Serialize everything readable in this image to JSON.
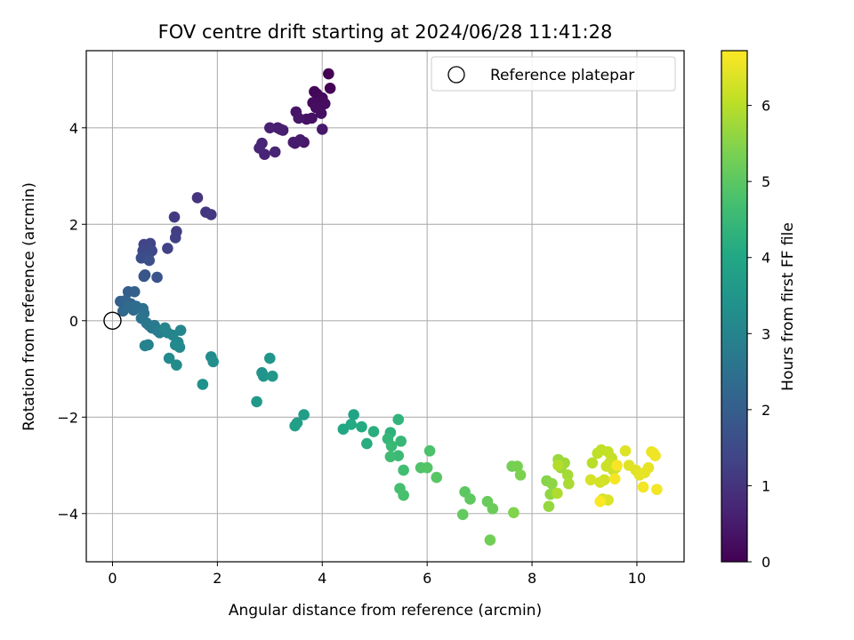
{
  "chart_data": {
    "type": "scatter",
    "title": "FOV centre drift starting at 2024/06/28 11:41:28",
    "xlabel": "Angular distance from reference (arcmin)",
    "ylabel": "Rotation from reference (arcmin)",
    "xlim": [
      -0.5,
      10.9
    ],
    "ylim": [
      -5.0,
      5.6
    ],
    "xticks": [
      0,
      2,
      4,
      6,
      8,
      10
    ],
    "yticks": [
      -4,
      -2,
      0,
      2,
      4
    ],
    "grid": true,
    "legend": {
      "placement": "top-right",
      "entries": [
        "Reference platepar"
      ]
    },
    "colorbar": {
      "label": "Hours from first FF file",
      "range": [
        0,
        6.72
      ],
      "ticks": [
        0,
        1,
        2,
        3,
        4,
        5,
        6
      ],
      "colormap": "viridis"
    },
    "reference_point": {
      "x": 0,
      "y": 0,
      "label": "Reference platepar"
    },
    "series": [
      {
        "x": [
          4.12,
          4.15,
          3.85,
          3.9,
          4.0,
          3.95,
          3.82,
          4.05,
          3.88,
          3.98,
          3.8,
          3.7,
          3.5,
          3.55,
          3.65,
          3.48,
          4.0,
          3.58,
          3.45,
          3.25,
          3.15,
          3.2,
          3.0,
          2.9,
          2.85,
          2.8,
          3.1
        ],
        "y": [
          5.12,
          4.82,
          4.75,
          4.7,
          4.62,
          4.55,
          4.52,
          4.5,
          4.42,
          4.3,
          4.2,
          4.18,
          4.33,
          4.2,
          3.7,
          3.68,
          3.97,
          3.75,
          3.7,
          3.95,
          4.0,
          3.97,
          4.0,
          3.45,
          3.68,
          3.58,
          3.5
        ],
        "hours": [
          0.0,
          0.05,
          0.1,
          0.12,
          0.15,
          0.18,
          0.2,
          0.22,
          0.25,
          0.28,
          0.3,
          0.33,
          0.36,
          0.4,
          0.42,
          0.45,
          0.47,
          0.5,
          0.52,
          0.55,
          0.58,
          0.6,
          0.62,
          0.65,
          0.68,
          0.7,
          0.72
        ]
      },
      {
        "x": [
          1.62,
          1.78,
          1.88,
          1.18,
          1.22,
          1.2,
          1.05,
          0.6,
          0.72,
          0.75,
          0.58,
          0.68,
          0.55,
          0.7,
          0.62,
          0.85,
          0.6
        ],
        "y": [
          2.55,
          2.25,
          2.2,
          2.15,
          1.85,
          1.72,
          1.5,
          1.58,
          1.6,
          1.45,
          1.45,
          1.35,
          1.3,
          1.25,
          0.95,
          0.9,
          0.92
        ],
        "hours": [
          1.0,
          1.05,
          1.1,
          1.15,
          1.2,
          1.25,
          1.3,
          1.35,
          1.4,
          1.45,
          1.5,
          1.55,
          1.6,
          1.65,
          1.7,
          1.75,
          1.8
        ]
      },
      {
        "x": [
          0.3,
          0.15,
          0.42,
          0.25,
          0.35,
          0.2,
          0.4,
          0.3,
          0.45,
          0.58,
          0.6,
          0.55,
          0.65,
          0.7,
          0.75,
          0.8,
          0.85,
          0.9,
          0.68,
          0.62,
          1.0,
          1.05,
          1.15,
          1.3,
          1.25,
          1.2,
          1.28,
          1.08,
          1.22
        ],
        "y": [
          0.6,
          0.4,
          0.6,
          0.42,
          0.35,
          0.2,
          0.22,
          0.28,
          0.3,
          0.25,
          0.15,
          0.05,
          -0.05,
          -0.1,
          -0.15,
          -0.1,
          -0.2,
          -0.25,
          -0.5,
          -0.52,
          -0.15,
          -0.25,
          -0.3,
          -0.2,
          -0.45,
          -0.5,
          -0.55,
          -0.78,
          -0.92
        ],
        "hours": [
          2.0,
          2.05,
          2.1,
          2.15,
          2.2,
          2.25,
          2.3,
          2.35,
          2.4,
          2.45,
          2.5,
          2.55,
          2.6,
          2.65,
          2.7,
          2.75,
          2.8,
          2.85,
          2.9,
          2.95,
          3.0,
          3.02,
          3.05,
          3.08,
          3.1,
          3.12,
          3.15,
          3.18,
          3.2
        ]
      },
      {
        "x": [
          1.88,
          1.92,
          1.72,
          2.85,
          2.88,
          3.0,
          3.05,
          2.75,
          3.65,
          3.52,
          3.48
        ],
        "y": [
          -0.75,
          -0.85,
          -1.32,
          -1.08,
          -1.15,
          -0.78,
          -1.15,
          -1.68,
          -1.95,
          -2.12,
          -2.18
        ],
        "hours": [
          3.25,
          3.3,
          3.35,
          3.4,
          3.45,
          3.5,
          3.55,
          3.6,
          3.7,
          3.75,
          3.8
        ]
      },
      {
        "x": [
          4.6,
          4.4,
          4.55,
          4.75,
          4.85,
          4.98,
          5.3,
          5.45,
          5.25,
          5.5,
          5.32,
          5.45,
          5.3,
          5.55,
          5.48,
          5.55,
          6.05,
          5.88,
          6.0,
          6.18
        ],
        "y": [
          -1.95,
          -2.25,
          -2.15,
          -2.2,
          -2.55,
          -2.3,
          -2.32,
          -2.05,
          -2.45,
          -2.5,
          -2.6,
          -2.8,
          -2.82,
          -3.1,
          -3.48,
          -3.62,
          -2.7,
          -3.05,
          -3.05,
          -3.25
        ],
        "hours": [
          3.9,
          4.0,
          4.05,
          4.1,
          4.15,
          4.2,
          4.3,
          4.35,
          4.4,
          4.45,
          4.5,
          4.55,
          4.6,
          4.65,
          4.7,
          4.75,
          4.8,
          4.85,
          4.9,
          4.95
        ]
      },
      {
        "x": [
          6.72,
          6.82,
          6.68,
          7.15,
          7.25,
          7.2,
          7.62,
          7.72,
          7.78,
          7.65,
          8.28,
          8.38,
          8.35,
          8.32,
          8.5,
          8.55,
          8.62,
          8.68,
          8.7,
          8.48,
          8.5
        ],
        "y": [
          -3.55,
          -3.7,
          -4.02,
          -3.75,
          -3.9,
          -4.55,
          -3.02,
          -3.02,
          -3.2,
          -3.98,
          -3.32,
          -3.38,
          -3.6,
          -3.85,
          -2.88,
          -3.05,
          -2.95,
          -3.2,
          -3.38,
          -3.58,
          -3.0
        ],
        "hours": [
          5.0,
          5.05,
          5.1,
          5.15,
          5.2,
          5.25,
          5.3,
          5.35,
          5.4,
          5.45,
          5.5,
          5.55,
          5.6,
          5.65,
          5.7,
          5.72,
          5.75,
          5.8,
          5.85,
          5.9,
          5.95
        ]
      },
      {
        "x": [
          9.15,
          9.25,
          9.32,
          9.45,
          9.52,
          9.48,
          9.42,
          9.55,
          9.6,
          9.38,
          9.3,
          9.12,
          9.35,
          9.45,
          9.78,
          9.85,
          9.98,
          10.05,
          10.15,
          10.22,
          10.28,
          10.32,
          10.35,
          10.12,
          10.38,
          9.58,
          9.62,
          9.3
        ],
        "y": [
          -2.95,
          -2.75,
          -2.68,
          -2.72,
          -2.85,
          -2.95,
          -3.02,
          -3.1,
          -3.05,
          -3.3,
          -3.35,
          -3.3,
          -3.7,
          -3.72,
          -2.7,
          -3.0,
          -3.1,
          -3.2,
          -3.15,
          -3.05,
          -2.72,
          -2.75,
          -2.8,
          -3.45,
          -3.5,
          -3.28,
          -3.0,
          -3.75
        ],
        "hours": [
          6.0,
          6.05,
          6.08,
          6.1,
          6.12,
          6.15,
          6.18,
          6.2,
          6.22,
          6.25,
          6.28,
          6.3,
          6.32,
          6.35,
          6.38,
          6.4,
          6.42,
          6.45,
          6.48,
          6.5,
          6.52,
          6.55,
          6.58,
          6.6,
          6.62,
          6.64,
          6.66,
          6.7
        ]
      }
    ]
  }
}
